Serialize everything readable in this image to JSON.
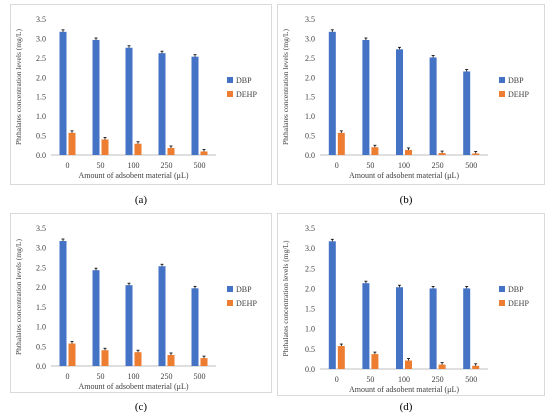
{
  "chart_data": [
    {
      "type": "bar",
      "caption": "(a)",
      "categories": [
        "0",
        "50",
        "100",
        "250",
        "500"
      ],
      "series": [
        {
          "name": "DBP",
          "values": [
            3.17,
            2.96,
            2.76,
            2.62,
            2.53
          ]
        },
        {
          "name": "DEHP",
          "values": [
            0.57,
            0.4,
            0.29,
            0.18,
            0.09
          ]
        }
      ],
      "xlabel": "Amount of adsobent material (μL)",
      "ylabel": "Phthalates concentration levels (mg/L)",
      "ylim": [
        0,
        3.5
      ],
      "yticks": [
        "0.0",
        "0.5",
        "1.0",
        "1.5",
        "2.0",
        "2.5",
        "3.0",
        "3.5"
      ],
      "legend": "right",
      "colors": {
        "DBP": "#4472c4",
        "DEHP": "#ed7d31"
      }
    },
    {
      "type": "bar",
      "caption": "(b)",
      "categories": [
        "0",
        "50",
        "100",
        "250",
        "500"
      ],
      "series": [
        {
          "name": "DBP",
          "values": [
            3.17,
            2.96,
            2.72,
            2.51,
            2.15
          ]
        },
        {
          "name": "DEHP",
          "values": [
            0.57,
            0.2,
            0.13,
            0.05,
            0.04
          ]
        }
      ],
      "xlabel": "Amount of adsobent material (μL)",
      "ylabel": "Phthalates concentration levels (mg/L)",
      "ylim": [
        0,
        3.5
      ],
      "yticks": [
        "0.0",
        "0.5",
        "1.0",
        "1.5",
        "2.0",
        "2.5",
        "3.0",
        "3.5"
      ],
      "legend": "right",
      "colors": {
        "DBP": "#4472c4",
        "DEHP": "#ed7d31"
      }
    },
    {
      "type": "bar",
      "caption": "(c)",
      "categories": [
        "0",
        "50",
        "100",
        "250",
        "500"
      ],
      "series": [
        {
          "name": "DBP",
          "values": [
            3.17,
            2.43,
            2.05,
            2.53,
            1.97
          ]
        },
        {
          "name": "DEHP",
          "values": [
            0.57,
            0.4,
            0.35,
            0.28,
            0.2
          ]
        }
      ],
      "xlabel": "Amount of adsobent material (μL)",
      "ylabel": "Phthalates concentration levels (mg/L)",
      "ylim": [
        0,
        3.5
      ],
      "yticks": [
        "0.0",
        "0.5",
        "1.0",
        "1.5",
        "2.0",
        "2.5",
        "3.0",
        "3.5"
      ],
      "legend": "right",
      "colors": {
        "DBP": "#4472c4",
        "DEHP": "#ed7d31"
      }
    },
    {
      "type": "bar",
      "caption": "(d)",
      "categories": [
        "0",
        "50",
        "100",
        "250",
        "500"
      ],
      "series": [
        {
          "name": "DBP",
          "values": [
            3.17,
            2.13,
            2.03,
            2.0,
            2.0
          ]
        },
        {
          "name": "DEHP",
          "values": [
            0.57,
            0.37,
            0.21,
            0.11,
            0.08
          ]
        }
      ],
      "xlabel": "Amount of adsobent material (μL)",
      "ylabel": "Phthalates concentration levels (mg/L)",
      "ylim": [
        0,
        3.5
      ],
      "yticks": [
        "0.0",
        "0.5",
        "1.0",
        "1.5",
        "2.0",
        "2.5",
        "3.0",
        "3.5"
      ],
      "legend": "right",
      "colors": {
        "DBP": "#4472c4",
        "DEHP": "#ed7d31"
      }
    }
  ]
}
